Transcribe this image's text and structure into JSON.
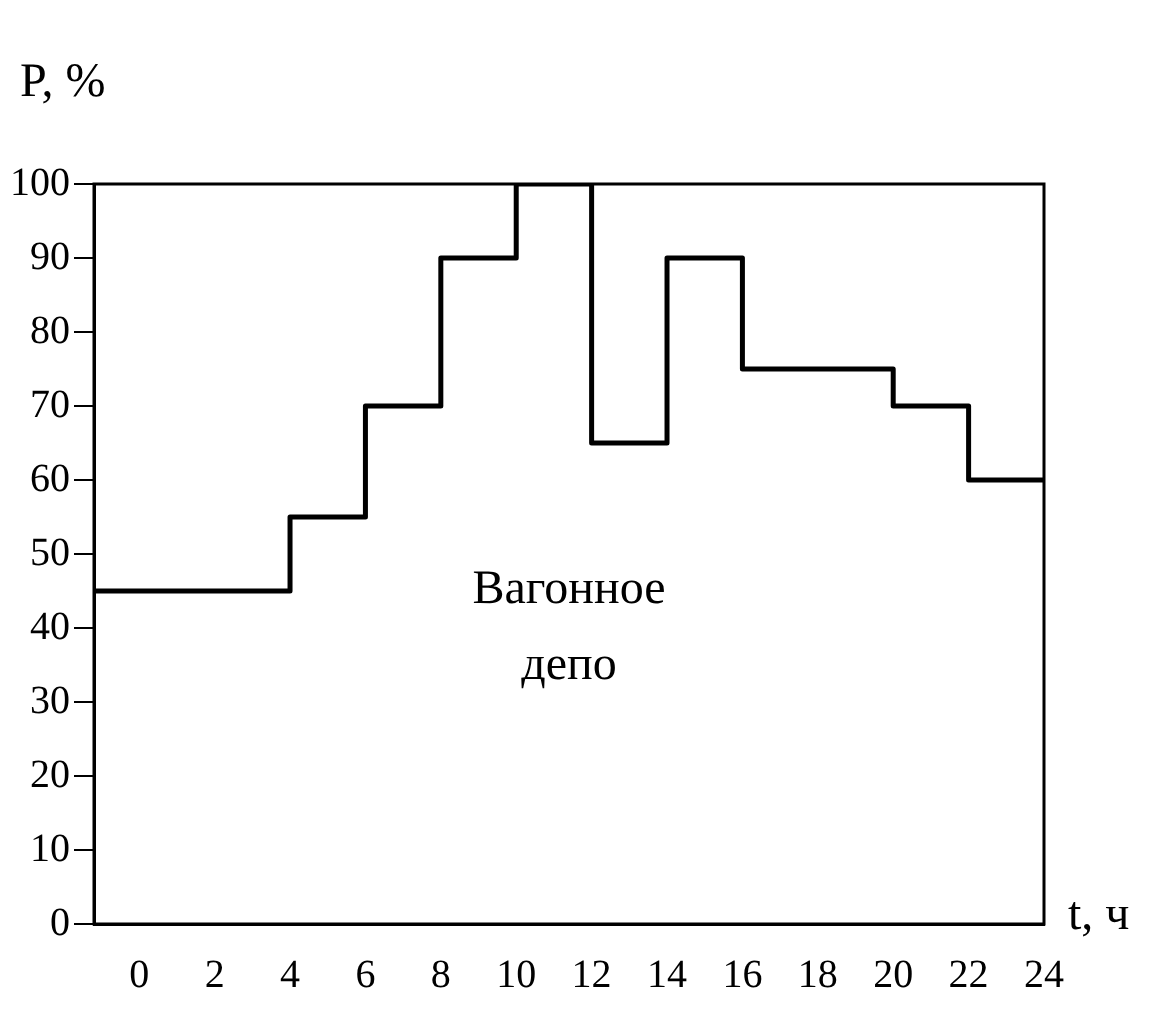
{
  "chart_data": {
    "type": "step",
    "xlabel": "t, ч",
    "ylabel": "P, %",
    "annotations": [
      "Вагонное депо"
    ],
    "x": [
      -1.2,
      4,
      6,
      8,
      10,
      12,
      14,
      16,
      18,
      20,
      22,
      24
    ],
    "values": [
      45,
      55,
      70,
      90,
      100,
      65,
      90,
      75,
      75,
      70,
      60,
      60
    ],
    "color": "#000000",
    "marker": "none",
    "line_style": "solid",
    "grid": false,
    "legend": false,
    "xlim": [
      -1.2,
      24
    ],
    "xticks": [
      0,
      2,
      4,
      6,
      8,
      10,
      12,
      14,
      16,
      18,
      20,
      22,
      24
    ],
    "ylim": [
      0,
      100
    ],
    "yticks": [
      0,
      10,
      20,
      30,
      40,
      50,
      60,
      70,
      80,
      90,
      100
    ]
  }
}
